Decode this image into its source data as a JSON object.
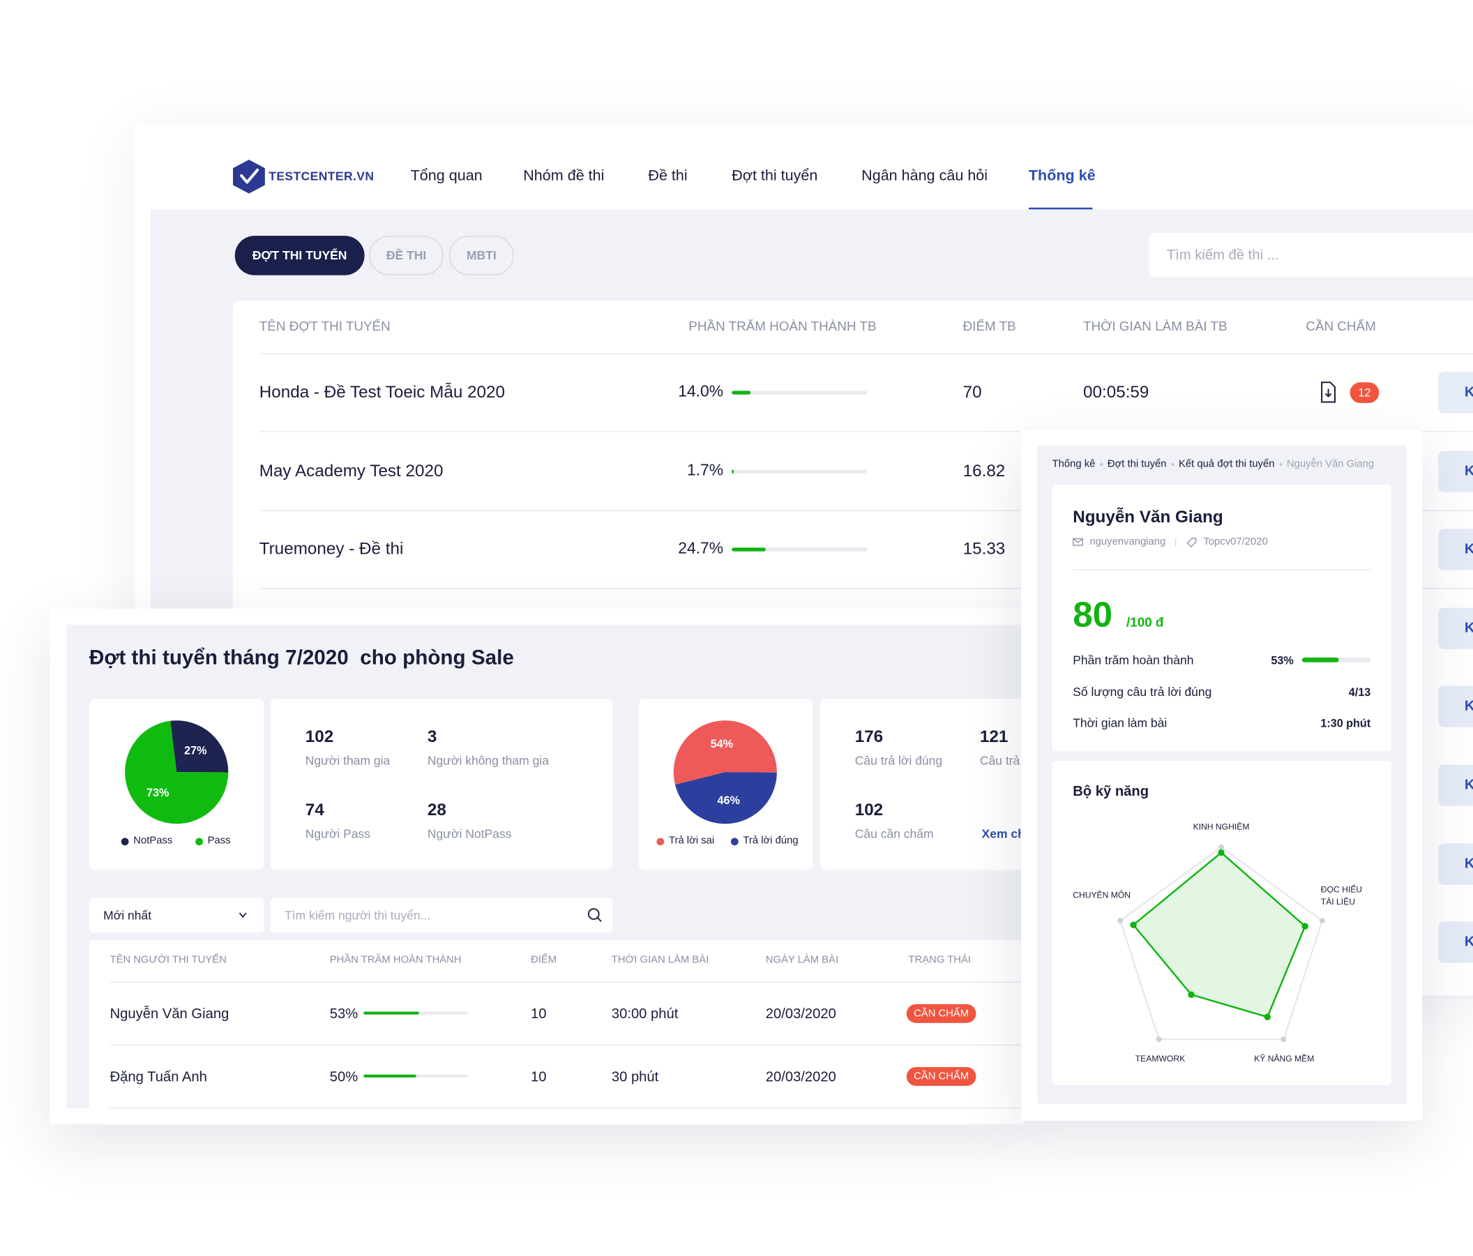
{
  "nav": {
    "logo": "TESTCENTER.VN",
    "items": [
      "Tổng quan",
      "Nhóm đề thi",
      "Đề thi",
      "Đợt thi tuyển",
      "Ngân hàng câu hỏi",
      "Thống kê"
    ],
    "active_index": 5
  },
  "tabs": {
    "items": [
      "ĐỢT THI TUYỂN",
      "ĐỀ THI",
      "MBTI"
    ],
    "active_index": 0
  },
  "search_placeholder": "Tìm kiếm đề thi ...",
  "exam_table": {
    "headers": [
      "TÊN ĐỢT THI TUYỂN",
      "PHẦN TRĂM HOÀN THÀNH TB",
      "ĐIỂM TB",
      "THỜI GIAN LÀM BÀI TB",
      "CẦN CHẤM"
    ],
    "rows": [
      {
        "name": "Honda - Đề Test Toeic Mẫu 2020",
        "completion": {
          "value": 14.0,
          "label": "14.0%"
        },
        "score": 70,
        "time": "00:05:59",
        "pending": 12
      },
      {
        "name": "May Academy Test 2020",
        "completion": {
          "value": 1.7,
          "label": "1.7%"
        },
        "score": 16.82
      },
      {
        "name": "Truemoney - Đề thi",
        "completion": {
          "value": 24.7,
          "label": "24.7%"
        },
        "score": 15.33
      }
    ],
    "buttons": [
      "K",
      "K",
      "K",
      "K",
      "K",
      "K",
      "K",
      "K"
    ]
  },
  "campaign": {
    "title": "Đợt thi tuyển tháng 7/2020  cho phòng Sale",
    "pass_pie": {
      "type": "pie",
      "categories": [
        "NotPass",
        "Pass"
      ],
      "values": [
        27,
        73
      ],
      "value_labels": [
        "27%",
        "73%"
      ],
      "colors": [
        "#1e2350",
        "#10bb10"
      ]
    },
    "participants": [
      {
        "value": 102,
        "label": "Người tham gia"
      },
      {
        "value": 3,
        "label": "Người không tham gia"
      },
      {
        "value": 74,
        "label": "Người Pass"
      },
      {
        "value": 28,
        "label": "Người NotPass"
      }
    ],
    "answer_pie": {
      "type": "pie",
      "categories": [
        "Trả lời sai",
        "Trả lời đúng"
      ],
      "values": [
        54,
        46
      ],
      "value_labels": [
        "54%",
        "46%"
      ],
      "colors": [
        "#ee5a5a",
        "#2c3f9e"
      ]
    },
    "answers": [
      {
        "value": 176,
        "label": "Câu trả lời đúng"
      },
      {
        "value": 121,
        "label": "Câu trả"
      },
      {
        "value": 102,
        "label": "Câu cần chấm"
      }
    ],
    "detail_link": "Xem ch",
    "sort": "Mới nhất",
    "search_placeholder": "Tìm kiếm người thi tuyển...",
    "table": {
      "headers": [
        "TÊN NGƯỜI THI TUYỂN",
        "PHẦN TRĂM HOÀN THÀNH",
        "ĐIỂM",
        "THỜI GIAN LÀM BÀI",
        "NGÀY LÀM BÀI",
        "TRẠNG THÁI"
      ],
      "rows": [
        {
          "name": "Nguyễn Văn Giang",
          "completion": {
            "value": 53,
            "label": "53%"
          },
          "score": 10,
          "time": "30:00 phút",
          "date": "20/03/2020",
          "status": "CẦN CHẤM"
        },
        {
          "name": "Đặng Tuấn Anh",
          "completion": {
            "value": 50,
            "label": "50%"
          },
          "score": 10,
          "time": "30 phút",
          "date": "20/03/2020",
          "status": "CẦN CHẤM"
        }
      ]
    }
  },
  "profile": {
    "breadcrumb": [
      "Thống kê",
      "Đợt thi tuyển",
      "Kết quả đợt thi tuyển",
      "Nguyễn Văn Giang"
    ],
    "name": "Nguyễn Văn Giang",
    "email": "nguyenvangiang",
    "tag": "Topcv07/2020",
    "score": 80,
    "score_suffix": "/100 đ",
    "completion": {
      "label": "Phần trăm hoàn thành",
      "value": 53,
      "value_label": "53%"
    },
    "correct": {
      "label": "Số lượng câu trả lời đúng",
      "value": "4/13"
    },
    "time": {
      "label": "Thời gian làm bài",
      "value": "1:30 phút"
    },
    "skills": {
      "title": "Bộ kỹ năng",
      "chart": {
        "type": "radar",
        "categories": [
          "KINH NGHIỆM",
          "ĐỌC HIỂU TÀI LIỆU",
          "KỸ NĂNG MỀM",
          "TEAMWORK",
          "CHUYÊN MÔN"
        ],
        "values": [
          95,
          83,
          74,
          48,
          87
        ],
        "rlim": [
          0,
          100
        ],
        "color": "#12b312"
      }
    }
  }
}
